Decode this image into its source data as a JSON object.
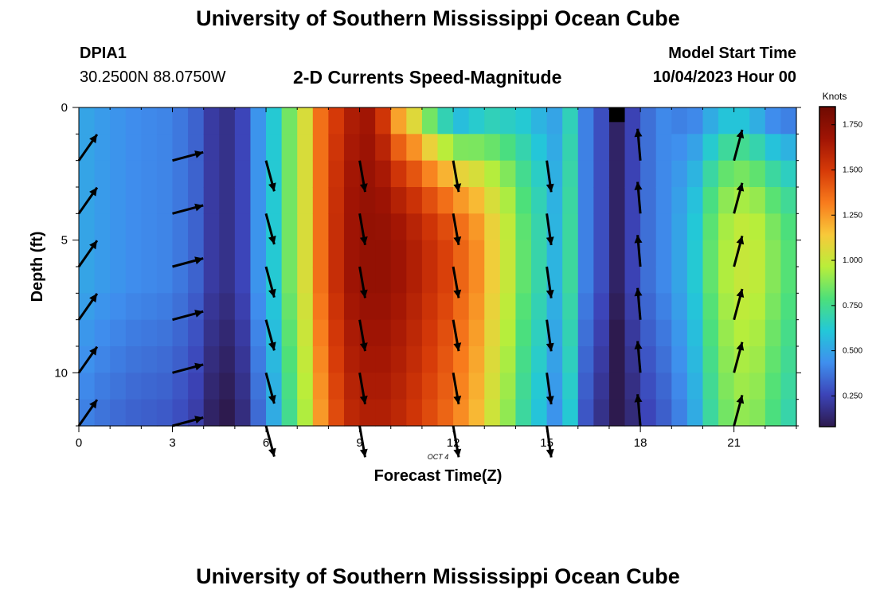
{
  "header": {
    "title": "University of Southern Mississippi Ocean Cube",
    "station_id": "DPIA1",
    "coords": "30.2500N  88.0750W",
    "subtitle": "2-D Currents Speed-Magnitude",
    "model_label": "Model Start Time",
    "model_time": "10/04/2023 Hour 00"
  },
  "footer": {
    "title": "University of Southern Mississippi Ocean Cube"
  },
  "chart_data": {
    "type": "heatmap",
    "title": "2-D Currents Speed-Magnitude",
    "xlabel": "Forecast Time(Z)",
    "ylabel": "Depth (ft)",
    "date_label": "OCT 4",
    "xlim": [
      0,
      23
    ],
    "ylim": [
      0,
      12
    ],
    "y_inverted": true,
    "x_ticks": [
      0,
      3,
      6,
      9,
      12,
      15,
      18,
      21
    ],
    "y_ticks": [
      0,
      5,
      10
    ],
    "colorbar": {
      "title": "Knots",
      "range": [
        0.08,
        1.85
      ],
      "ticks": [
        0.25,
        0.5,
        0.75,
        1.0,
        1.25,
        1.5,
        1.75
      ],
      "tick_labels": [
        "0.250",
        "0.500",
        "0.750",
        "1.000",
        "1.250",
        "1.500",
        "1.750"
      ],
      "colors": [
        "#2d1a4e",
        "#3c44b8",
        "#3f8fee",
        "#23c8d8",
        "#4de07a",
        "#b9ee3a",
        "#f8c93a",
        "#f87b1c",
        "#d63a08",
        "#a01404",
        "#6e0a02"
      ]
    },
    "hours": [
      0,
      0.5,
      1,
      1.5,
      2,
      2.5,
      3,
      3.5,
      4,
      4.5,
      5,
      5.5,
      6,
      6.5,
      7,
      7.5,
      8,
      8.5,
      9,
      9.5,
      10,
      10.5,
      11,
      11.5,
      12,
      12.5,
      13,
      13.5,
      14,
      14.5,
      15,
      15.5,
      16,
      16.5,
      17,
      17.5,
      18,
      18.5,
      19,
      19.5,
      20,
      20.5,
      21,
      21.5,
      22,
      22.5
    ],
    "speed_profile_knots": [
      0.5,
      0.47,
      0.45,
      0.43,
      0.42,
      0.41,
      0.38,
      0.33,
      0.22,
      0.18,
      0.26,
      0.45,
      0.62,
      0.85,
      1.05,
      1.35,
      1.55,
      1.68,
      1.72,
      1.72,
      1.68,
      1.62,
      1.55,
      1.48,
      1.38,
      1.28,
      1.12,
      1.0,
      0.82,
      0.7,
      0.55,
      0.72,
      0.4,
      0.28,
      0.12,
      0.25,
      0.36,
      0.42,
      0.5,
      0.62,
      0.82,
      0.95,
      1.0,
      0.98,
      0.88,
      0.8
    ],
    "top_layer_decrement_knots": [
      0,
      0,
      0,
      0,
      0,
      0,
      0,
      0,
      0,
      0,
      0,
      0,
      0,
      0,
      0,
      0,
      0.05,
      0.05,
      0.05,
      0.2,
      0.45,
      0.55,
      0.7,
      0.8,
      0.8,
      0.65,
      0.45,
      0.35,
      0.2,
      0.15,
      0.05,
      0.05,
      0,
      0,
      0,
      0,
      0,
      0,
      0.1,
      0.2,
      0.3,
      0.35,
      0.4,
      0.45,
      0.45,
      0.4
    ],
    "vectors": {
      "times": [
        0,
        3,
        6,
        9,
        12,
        15,
        18,
        21
      ],
      "depths": [
        2,
        4,
        6,
        8,
        10,
        12
      ],
      "directions_deg": [
        35,
        75,
        165,
        170,
        170,
        172,
        355,
        15
      ]
    }
  }
}
